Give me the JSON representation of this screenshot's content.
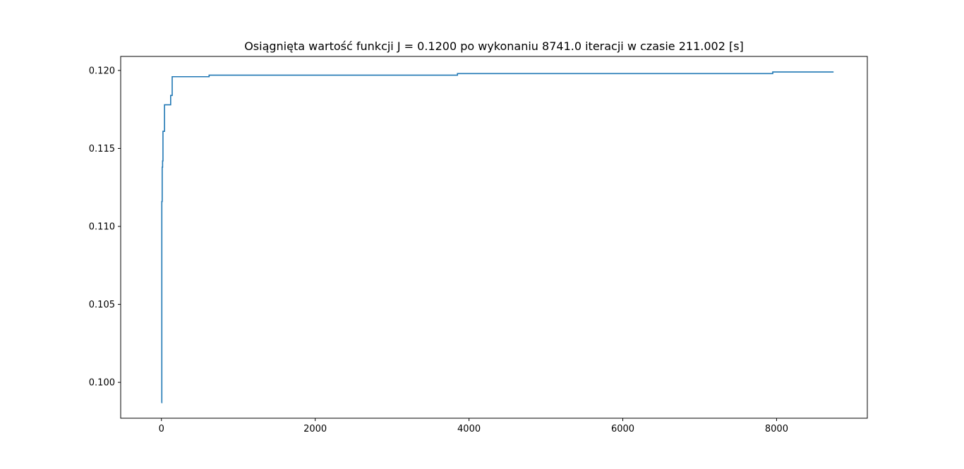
{
  "chart_data": {
    "type": "line",
    "title": "Osiągnięta wartość funkcji J = 0.1200 po wykonaniu 8741.0 iteracji w czasie 211.002 [s]",
    "xlabel": "",
    "ylabel": "",
    "xlim": [
      -530,
      9180
    ],
    "ylim": [
      0.0977,
      0.1209
    ],
    "xticks": [
      0,
      2000,
      4000,
      6000,
      8000
    ],
    "xtick_labels": [
      "0",
      "2000",
      "4000",
      "6000",
      "8000"
    ],
    "yticks": [
      0.1,
      0.105,
      0.11,
      0.115,
      0.12
    ],
    "ytick_labels": [
      "0.100",
      "0.105",
      "0.110",
      "0.115",
      "0.120"
    ],
    "grid": false,
    "line_color": "#1f77b4",
    "series": [
      {
        "x": [
          0,
          5,
          10,
          15,
          20,
          30,
          40,
          50,
          60,
          120,
          140,
          620,
          3850,
          7950,
          8741
        ],
        "y": [
          0.0987,
          0.1116,
          0.1138,
          0.1142,
          0.1161,
          0.1161,
          0.1178,
          0.1178,
          0.1178,
          0.1184,
          0.1196,
          0.1197,
          0.1198,
          0.1199,
          0.1199
        ]
      }
    ]
  }
}
